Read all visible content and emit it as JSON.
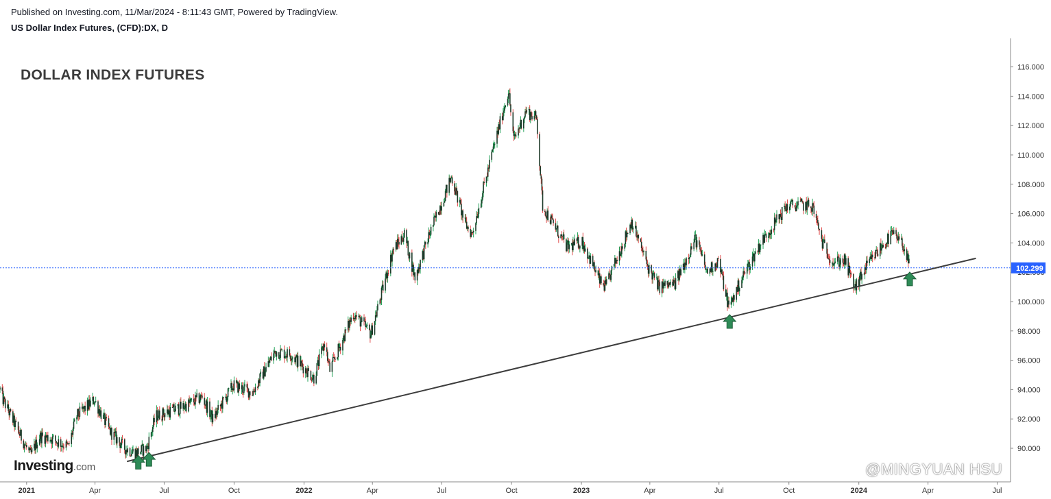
{
  "header": {
    "published": "Published on Investing.com, 11/Mar/2024 - 8:11:43 GMT, Powered by TradingView.",
    "symbol": "US Dollar Index Futures, (CFD):DX, D"
  },
  "logo": {
    "brand": "Investing",
    "suffix": ".com"
  },
  "watermark": "@MINGYUAN HSU",
  "colors": {
    "up": "#26a35a",
    "down": "#e04a4a",
    "body": "#1d3b2a",
    "price_line": "#2962ff",
    "trend": "#3d3d3d",
    "arrow": "#2e8b57"
  },
  "chart_data": {
    "type": "line",
    "title": "DOLLAR INDEX FUTURES",
    "ylim": [
      88,
      117
    ],
    "y_ticks": [
      "90.000",
      "92.000",
      "94.000",
      "96.000",
      "98.000",
      "100.000",
      "102.000",
      "104.000",
      "106.000",
      "108.000",
      "110.000",
      "112.000",
      "114.000",
      "116.000"
    ],
    "x_ticks": [
      "2021",
      "Apr",
      "Jul",
      "Oct",
      "2022",
      "Apr",
      "Jul",
      "Oct",
      "2023",
      "Apr",
      "Jul",
      "Oct",
      "2024",
      "Apr",
      "Jul"
    ],
    "x_tick_dates": [
      "2021-01-01",
      "2021-04-01",
      "2021-07-01",
      "2021-10-01",
      "2022-01-01",
      "2022-04-01",
      "2022-07-01",
      "2022-10-01",
      "2023-01-01",
      "2023-04-01",
      "2023-07-01",
      "2023-10-01",
      "2024-01-01",
      "2024-04-01",
      "2024-07-01"
    ],
    "last_price": "102.299",
    "last_value": 102.299,
    "price_series": [
      {
        "x": "2020-11-27",
        "y": 94.0
      },
      {
        "x": "2020-12-01",
        "y": 93.3
      },
      {
        "x": "2020-12-15",
        "y": 91.8
      },
      {
        "x": "2021-01-06",
        "y": 89.5
      },
      {
        "x": "2021-01-18",
        "y": 90.8
      },
      {
        "x": "2021-02-01",
        "y": 90.7
      },
      {
        "x": "2021-02-25",
        "y": 90.1
      },
      {
        "x": "2021-03-08",
        "y": 92.2
      },
      {
        "x": "2021-03-31",
        "y": 93.3
      },
      {
        "x": "2021-04-20",
        "y": 91.2
      },
      {
        "x": "2021-05-10",
        "y": 90.0
      },
      {
        "x": "2021-05-25",
        "y": 89.7
      },
      {
        "x": "2021-06-08",
        "y": 90.0
      },
      {
        "x": "2021-06-20",
        "y": 92.2
      },
      {
        "x": "2021-07-07",
        "y": 92.5
      },
      {
        "x": "2021-07-25",
        "y": 92.8
      },
      {
        "x": "2021-08-20",
        "y": 93.5
      },
      {
        "x": "2021-09-03",
        "y": 92.0
      },
      {
        "x": "2021-09-30",
        "y": 94.3
      },
      {
        "x": "2021-10-25",
        "y": 93.8
      },
      {
        "x": "2021-11-24",
        "y": 96.6
      },
      {
        "x": "2021-12-15",
        "y": 96.4
      },
      {
        "x": "2022-01-14",
        "y": 94.8
      },
      {
        "x": "2022-01-28",
        "y": 97.2
      },
      {
        "x": "2022-02-04",
        "y": 95.3
      },
      {
        "x": "2022-03-07",
        "y": 99.2
      },
      {
        "x": "2022-03-30",
        "y": 97.8
      },
      {
        "x": "2022-04-28",
        "y": 103.5
      },
      {
        "x": "2022-05-13",
        "y": 104.6
      },
      {
        "x": "2022-05-27",
        "y": 101.6
      },
      {
        "x": "2022-06-15",
        "y": 104.6
      },
      {
        "x": "2022-07-14",
        "y": 108.5
      },
      {
        "x": "2022-08-01",
        "y": 105.3
      },
      {
        "x": "2022-08-10",
        "y": 104.6
      },
      {
        "x": "2022-09-06",
        "y": 110.2
      },
      {
        "x": "2022-09-27",
        "y": 114.4
      },
      {
        "x": "2022-10-04",
        "y": 111.0
      },
      {
        "x": "2022-10-20",
        "y": 113.0
      },
      {
        "x": "2022-11-03",
        "y": 112.5
      },
      {
        "x": "2022-11-11",
        "y": 106.5
      },
      {
        "x": "2022-12-13",
        "y": 103.7
      },
      {
        "x": "2023-01-02",
        "y": 104.1
      },
      {
        "x": "2023-01-26",
        "y": 101.3
      },
      {
        "x": "2023-02-02",
        "y": 101.0
      },
      {
        "x": "2023-03-08",
        "y": 105.5
      },
      {
        "x": "2023-03-30",
        "y": 102.3
      },
      {
        "x": "2023-04-13",
        "y": 101.0
      },
      {
        "x": "2023-05-04",
        "y": 101.2
      },
      {
        "x": "2023-05-31",
        "y": 104.3
      },
      {
        "x": "2023-06-15",
        "y": 102.0
      },
      {
        "x": "2023-06-30",
        "y": 102.8
      },
      {
        "x": "2023-07-14",
        "y": 99.6
      },
      {
        "x": "2023-08-02",
        "y": 101.8
      },
      {
        "x": "2023-08-25",
        "y": 104.0
      },
      {
        "x": "2023-09-28",
        "y": 106.5
      },
      {
        "x": "2023-10-13",
        "y": 106.6
      },
      {
        "x": "2023-11-01",
        "y": 106.5
      },
      {
        "x": "2023-11-14",
        "y": 104.0
      },
      {
        "x": "2023-11-28",
        "y": 102.7
      },
      {
        "x": "2023-12-13",
        "y": 102.8
      },
      {
        "x": "2023-12-27",
        "y": 100.9
      },
      {
        "x": "2024-01-10",
        "y": 102.3
      },
      {
        "x": "2024-01-24",
        "y": 103.3
      },
      {
        "x": "2024-02-14",
        "y": 104.6
      },
      {
        "x": "2024-02-29",
        "y": 103.8
      },
      {
        "x": "2024-03-08",
        "y": 102.3
      }
    ],
    "trendline": {
      "start": {
        "x": "2021-05-13",
        "y": 89.1
      },
      "end": {
        "x": "2024-06-03",
        "y": 102.95
      }
    },
    "markers": [
      {
        "x": "2021-05-28",
        "y": 89.7
      },
      {
        "x": "2021-06-11",
        "y": 89.9
      },
      {
        "x": "2023-07-15",
        "y": 99.3
      },
      {
        "x": "2024-03-08",
        "y": 102.2
      }
    ]
  }
}
